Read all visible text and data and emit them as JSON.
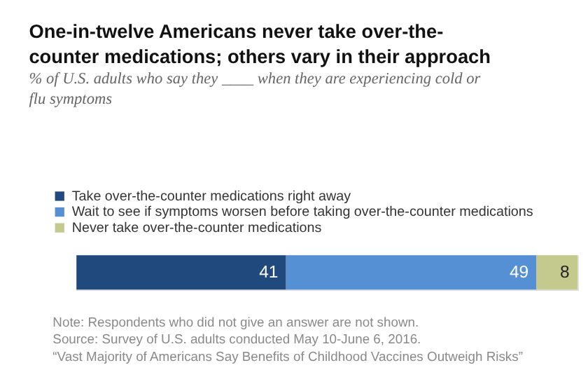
{
  "chart_data": {
    "type": "bar",
    "orientation": "horizontal",
    "stacked": true,
    "data_labels": true,
    "legend": "top left",
    "title": "One-in-twelve Americans never take over-the-counter medications; others vary in their approach",
    "subtitle": "% of U.S. adults who say they ____ when they are experiencing cold or flu symptoms",
    "categories": [
      null
    ],
    "series": [
      {
        "name": "Take over-the-counter medications right away",
        "color": "#204a7e",
        "values": [
          41
        ]
      },
      {
        "name": "Wait to see if symptoms worsen before taking over-the-counter medications",
        "color": "#5590d4",
        "values": [
          49
        ]
      },
      {
        "name": "Never take over-the-counter medications",
        "color": "#c4c98e",
        "values": [
          8
        ]
      }
    ],
    "annotations": [
      "Note: Respondents who did not give an answer are not shown.",
      "Source: Survey of U.S. adults conducted May 10-June 6, 2016.",
      "“Vast Majority of Americans Say Benefits of Childhood Vaccines Outweigh Risks”"
    ]
  }
}
